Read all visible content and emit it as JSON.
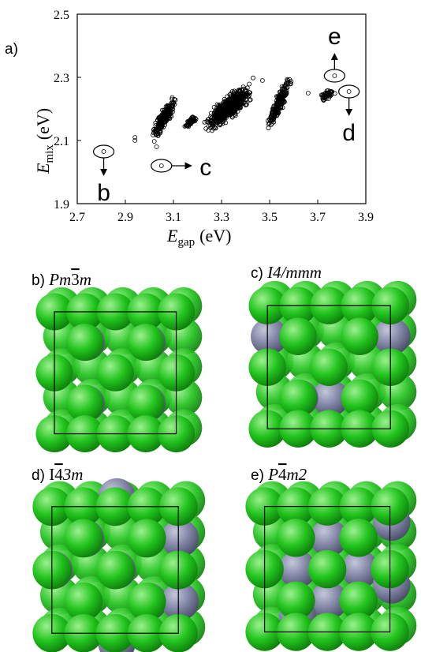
{
  "panel_a": {
    "label": "a)",
    "chart_data": {
      "type": "scatter",
      "title": "",
      "xlabel_main": "E",
      "xlabel_sub": "gap",
      "xlabel_unit": "(eV)",
      "ylabel_main": "E",
      "ylabel_sub": "mix",
      "ylabel_unit": "(eV)",
      "xlim": [
        2.7,
        3.9
      ],
      "ylim": [
        1.9,
        2.5
      ],
      "xticks": [
        "2.7",
        "2.9",
        "3.1",
        "3.3",
        "3.5",
        "3.7",
        "3.9"
      ],
      "yticks": [
        "1.9",
        "2.1",
        "2.3",
        "2.5"
      ],
      "marker": "open-circle",
      "clusters": [
        {
          "x_range": [
            3.0,
            3.12
          ],
          "y_range": [
            2.1,
            2.24
          ],
          "n": 260,
          "x_center": 3.06,
          "slope": 0.9
        },
        {
          "x_range": [
            3.14,
            3.2
          ],
          "y_range": [
            2.13,
            2.19
          ],
          "n": 50,
          "x_center": 3.17,
          "slope": 0.5
        },
        {
          "x_range": [
            3.22,
            3.44
          ],
          "y_range": [
            2.12,
            2.29
          ],
          "n": 650,
          "x_center": 3.33,
          "slope": 0.75
        },
        {
          "x_range": [
            3.48,
            3.6
          ],
          "y_range": [
            2.14,
            2.3
          ],
          "n": 220,
          "x_center": 3.54,
          "slope": 1.1
        },
        {
          "x_range": [
            3.7,
            3.78
          ],
          "y_range": [
            2.21,
            2.28
          ],
          "n": 60,
          "x_center": 3.74,
          "slope": 0.3
        }
      ],
      "points": [
        {
          "x": 2.94,
          "y": 2.11
        },
        {
          "x": 2.94,
          "y": 2.1
        },
        {
          "x": 3.03,
          "y": 2.08
        },
        {
          "x": 3.47,
          "y": 2.29
        },
        {
          "x": 3.66,
          "y": 2.25
        }
      ],
      "annotations": [
        {
          "id": "b",
          "label": "b",
          "x": 2.81,
          "y": 2.065,
          "arrow": "down"
        },
        {
          "id": "c",
          "label": "c",
          "x": 3.05,
          "y": 2.02,
          "arrow": "right"
        },
        {
          "id": "d",
          "label": "d",
          "x": 3.83,
          "y": 2.255,
          "arrow": "down"
        },
        {
          "id": "e",
          "label": "e",
          "x": 3.77,
          "y": 2.305,
          "arrow": "up"
        }
      ]
    }
  },
  "structures": [
    {
      "id": "b",
      "prefix": "b) ",
      "sg_parts": [
        "Pm",
        "3",
        "m"
      ],
      "bar": [
        false,
        true,
        false
      ],
      "pattern": "b"
    },
    {
      "id": "c",
      "prefix": "c) ",
      "sg_parts": [
        "I4/mmm"
      ],
      "bar": [
        false
      ],
      "pattern": "c"
    },
    {
      "id": "d",
      "prefix": "d) ",
      "sg_parts": [
        "I",
        "4",
        "3m"
      ],
      "bar": [
        false,
        true,
        false
      ],
      "pattern": "d"
    },
    {
      "id": "e",
      "prefix": "e) ",
      "sg_parts": [
        "P",
        "4",
        "m2"
      ],
      "bar": [
        false,
        true,
        false
      ],
      "pattern": "e"
    }
  ],
  "colors": {
    "green_atom": "#22c41e",
    "green_dark": "#0e7e0c",
    "green_light": "#9cf08e",
    "grey_atom": "#7f83a3",
    "grey_dark": "#4a4d66",
    "grey_light": "#c4c7db",
    "marker": "#000000"
  }
}
